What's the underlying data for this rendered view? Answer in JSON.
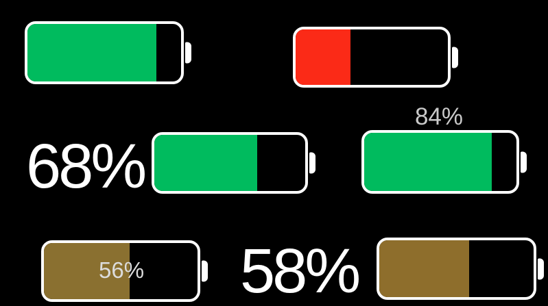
{
  "screen": {
    "background_color": "#000000",
    "outline_color": "#ffffff"
  },
  "batteries": [
    {
      "position": "top-left",
      "fill_percent": 84,
      "fill_color": "#00bb5e",
      "status_color_name": "green",
      "label": ""
    },
    {
      "position": "top-right",
      "fill_percent": 36,
      "fill_color": "#fb2a17",
      "status_color_name": "red",
      "label": ""
    },
    {
      "position": "middle-left",
      "fill_percent": 68,
      "fill_color": "#00bb5e",
      "status_color_name": "green",
      "label": "68%",
      "label_placement": "left-of-battery",
      "label_color": "#ffffff"
    },
    {
      "position": "middle-right",
      "fill_percent": 84,
      "fill_color": "#00bb5e",
      "status_color_name": "green",
      "label": "84%",
      "label_placement": "above-battery",
      "label_color": "#c9c9c9"
    },
    {
      "position": "bottom-left",
      "fill_percent": 56,
      "fill_color": "#8a7030",
      "status_color_name": "brown",
      "label": "56%",
      "label_placement": "inside-battery",
      "label_color": "#dcdcdc"
    },
    {
      "position": "bottom-right",
      "fill_percent": 58,
      "fill_color": "#8e6e2c",
      "status_color_name": "brown",
      "label": "58%",
      "label_placement": "left-of-battery",
      "label_color": "#ffffff"
    }
  ]
}
